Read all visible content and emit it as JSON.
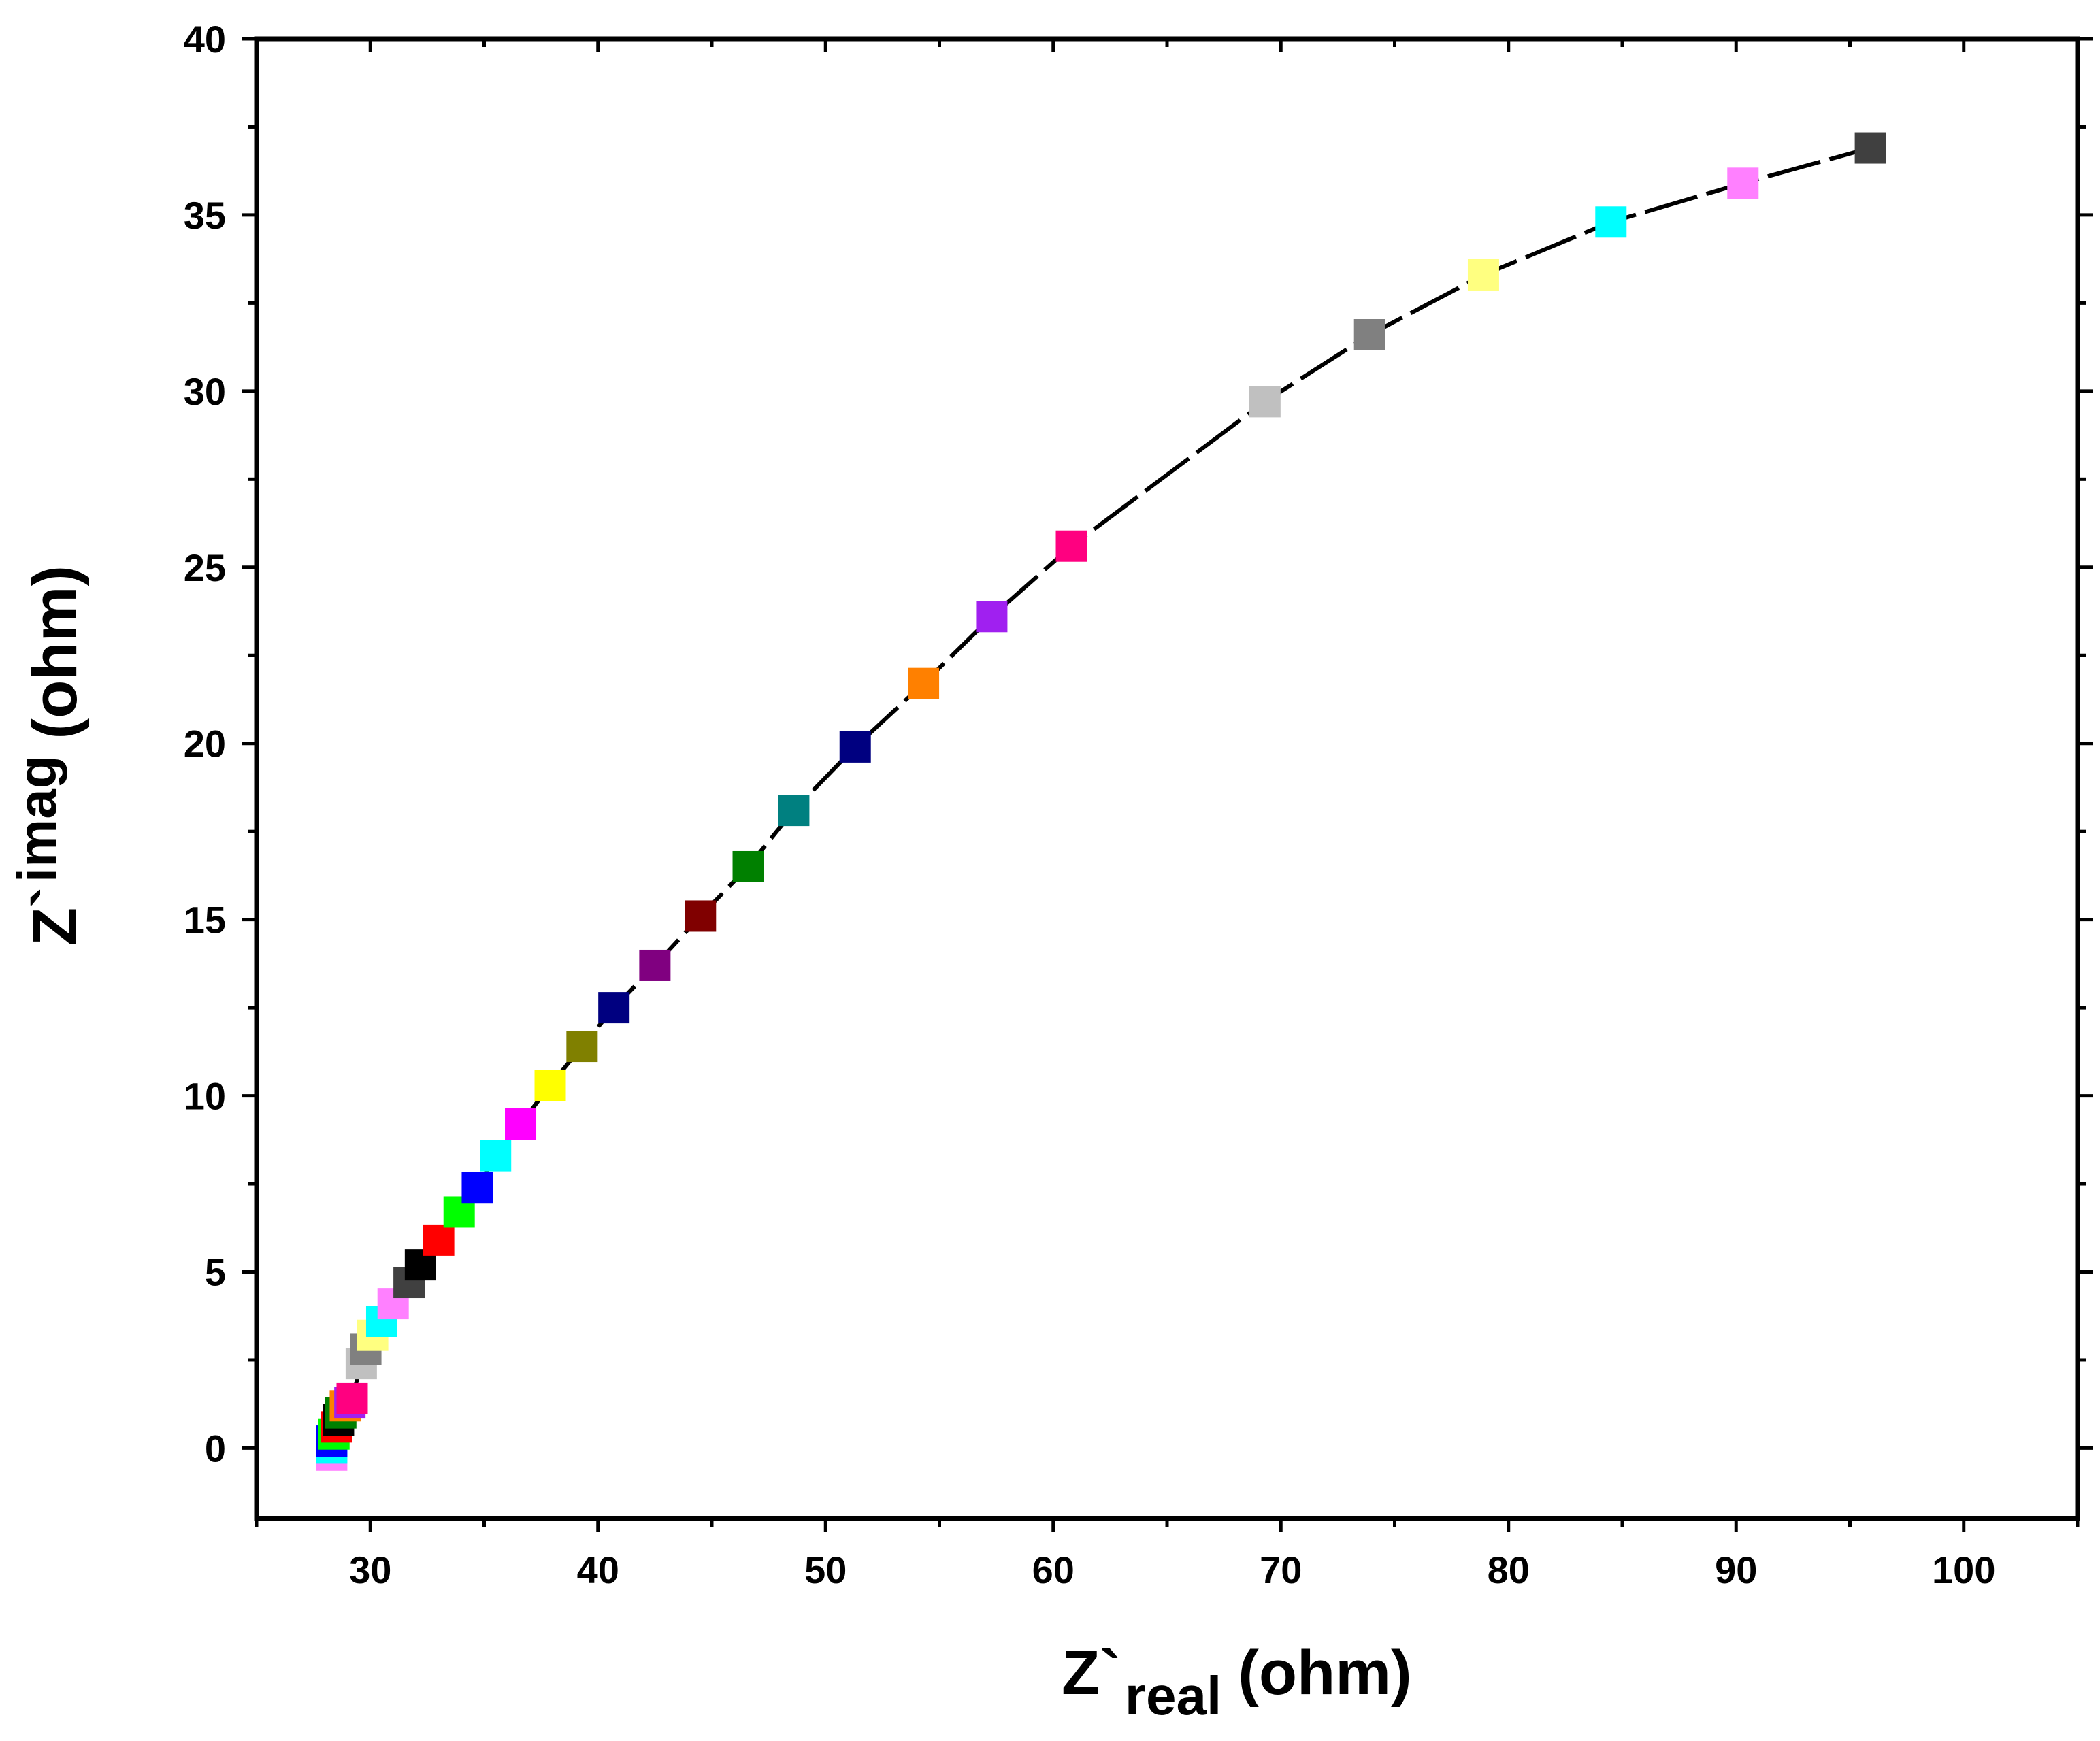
{
  "chart_data": {
    "type": "scatter",
    "title": "",
    "xlabel": {
      "main": "Z`",
      "sub": "real",
      "unit": "(ohm)"
    },
    "ylabel": {
      "main": "Z`",
      "sub": "imag",
      "unit": "(ohm)"
    },
    "xlim": [
      25,
      105
    ],
    "ylim": [
      -2,
      40
    ],
    "xticks": [
      30,
      40,
      50,
      60,
      70,
      80,
      90,
      100
    ],
    "yticks": [
      0,
      5,
      10,
      15,
      20,
      25,
      30,
      35,
      40
    ],
    "grid": false,
    "legend": "none",
    "line_color": "#000000",
    "points": [
      {
        "x": 28.3,
        "y": -0.2,
        "color": "#FF80FF"
      },
      {
        "x": 28.3,
        "y": 0.0,
        "color": "#00FFFF"
      },
      {
        "x": 28.3,
        "y": 0.2,
        "color": "#0000FF"
      },
      {
        "x": 28.4,
        "y": 0.4,
        "color": "#00FF00"
      },
      {
        "x": 28.5,
        "y": 0.6,
        "color": "#FF0000"
      },
      {
        "x": 28.6,
        "y": 0.8,
        "color": "#000000"
      },
      {
        "x": 28.7,
        "y": 1.0,
        "color": "#008000"
      },
      {
        "x": 28.9,
        "y": 1.2,
        "color": "#FF8000"
      },
      {
        "x": 29.1,
        "y": 1.3,
        "color": "#A020F0"
      },
      {
        "x": 29.2,
        "y": 1.4,
        "color": "#FF0080"
      },
      {
        "x": 29.6,
        "y": 2.4,
        "color": "#C0C0C0"
      },
      {
        "x": 29.8,
        "y": 2.8,
        "color": "#808080"
      },
      {
        "x": 30.1,
        "y": 3.2,
        "color": "#FFFF80"
      },
      {
        "x": 30.5,
        "y": 3.6,
        "color": "#00FFFF"
      },
      {
        "x": 31.0,
        "y": 4.1,
        "color": "#FF80FF"
      },
      {
        "x": 31.7,
        "y": 4.7,
        "color": "#404040"
      },
      {
        "x": 32.2,
        "y": 5.2,
        "color": "#000000"
      },
      {
        "x": 33.0,
        "y": 5.9,
        "color": "#FF0000"
      },
      {
        "x": 33.9,
        "y": 6.7,
        "color": "#00FF00"
      },
      {
        "x": 34.7,
        "y": 7.4,
        "color": "#0000FF"
      },
      {
        "x": 35.5,
        "y": 8.3,
        "color": "#00FFFF"
      },
      {
        "x": 36.6,
        "y": 9.2,
        "color": "#FF00FF"
      },
      {
        "x": 37.9,
        "y": 10.3,
        "color": "#FFFF00"
      },
      {
        "x": 39.3,
        "y": 11.4,
        "color": "#808000"
      },
      {
        "x": 40.7,
        "y": 12.5,
        "color": "#000080"
      },
      {
        "x": 42.5,
        "y": 13.7,
        "color": "#800080"
      },
      {
        "x": 44.5,
        "y": 15.1,
        "color": "#800000"
      },
      {
        "x": 46.6,
        "y": 16.5,
        "color": "#008000"
      },
      {
        "x": 48.6,
        "y": 18.1,
        "color": "#008080"
      },
      {
        "x": 51.3,
        "y": 19.9,
        "color": "#000080"
      },
      {
        "x": 54.3,
        "y": 21.7,
        "color": "#FF8000"
      },
      {
        "x": 57.3,
        "y": 23.6,
        "color": "#A020F0"
      },
      {
        "x": 60.8,
        "y": 25.6,
        "color": "#FF0080"
      },
      {
        "x": 69.3,
        "y": 29.7,
        "color": "#C0C0C0"
      },
      {
        "x": 73.9,
        "y": 31.6,
        "color": "#808080"
      },
      {
        "x": 78.9,
        "y": 33.3,
        "color": "#FFFF80"
      },
      {
        "x": 84.5,
        "y": 34.8,
        "color": "#00FFFF"
      },
      {
        "x": 90.3,
        "y": 35.9,
        "color": "#FF80FF"
      },
      {
        "x": 95.9,
        "y": 36.9,
        "color": "#404040"
      }
    ]
  }
}
